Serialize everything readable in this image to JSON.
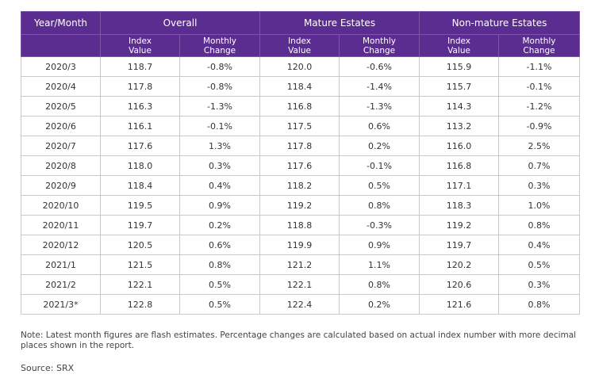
{
  "table": {
    "header": {
      "year_month": "Year/Month",
      "groups": [
        "Overall",
        "Mature Estates",
        "Non-mature Estates"
      ],
      "index_value": "Index\nValue",
      "monthly_change": "Monthly\nChange"
    },
    "rows": [
      [
        "2020/3",
        "118.7",
        "-0.8%",
        "120.0",
        "-0.6%",
        "115.9",
        "-1.1%"
      ],
      [
        "2020/4",
        "117.8",
        "-0.8%",
        "118.4",
        "-1.4%",
        "115.7",
        "-0.1%"
      ],
      [
        "2020/5",
        "116.3",
        "-1.3%",
        "116.8",
        "-1.3%",
        "114.3",
        "-1.2%"
      ],
      [
        "2020/6",
        "116.1",
        "-0.1%",
        "117.5",
        "0.6%",
        "113.2",
        "-0.9%"
      ],
      [
        "2020/7",
        "117.6",
        "1.3%",
        "117.8",
        "0.2%",
        "116.0",
        "2.5%"
      ],
      [
        "2020/8",
        "118.0",
        "0.3%",
        "117.6",
        "-0.1%",
        "116.8",
        "0.7%"
      ],
      [
        "2020/9",
        "118.4",
        "0.4%",
        "118.2",
        "0.5%",
        "117.1",
        "0.3%"
      ],
      [
        "2020/10",
        "119.5",
        "0.9%",
        "119.2",
        "0.8%",
        "118.3",
        "1.0%"
      ],
      [
        "2020/11",
        "119.7",
        "0.2%",
        "118.8",
        "-0.3%",
        "119.2",
        "0.8%"
      ],
      [
        "2020/12",
        "120.5",
        "0.6%",
        "119.9",
        "0.9%",
        "119.7",
        "0.4%"
      ],
      [
        "2021/1",
        "121.5",
        "0.8%",
        "121.2",
        "1.1%",
        "120.2",
        "0.5%"
      ],
      [
        "2021/2",
        "122.1",
        "0.5%",
        "122.1",
        "0.8%",
        "120.6",
        "0.3%"
      ],
      [
        "2021/3*",
        "122.8",
        "0.5%",
        "122.4",
        "0.2%",
        "121.6",
        "0.8%"
      ]
    ]
  },
  "note": "Note: Latest month figures are flash estimates. Percentage changes are calculated based on actual index number with more decimal places shown in the report.",
  "source": "Source: SRX",
  "colors": {
    "header_bg": "#5b2d91",
    "header_text": "#ffffff"
  }
}
